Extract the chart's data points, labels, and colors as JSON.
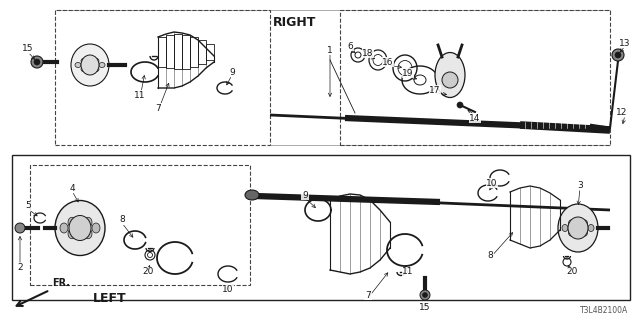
{
  "bg_color": "#ffffff",
  "diagram_color": "#1a1a1a",
  "right_label": "RIGHT",
  "left_label": "LEFT",
  "fr_label": "FR.",
  "ref_code": "T3L4B2100A",
  "fig_w": 6.4,
  "fig_h": 3.2,
  "dpi": 100
}
